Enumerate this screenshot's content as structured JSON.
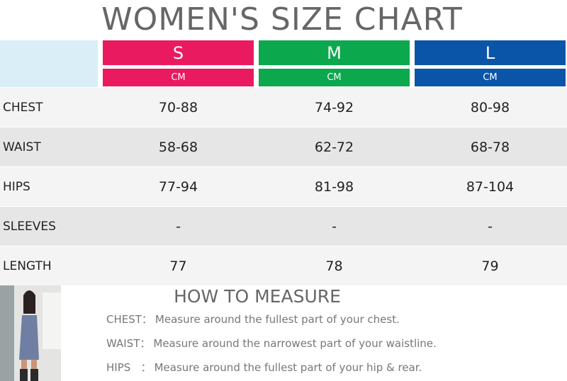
{
  "header": {
    "title": "WOMEN'S SIZE CHART"
  },
  "table": {
    "columns": [
      {
        "size": "S",
        "unit": "CM",
        "color": "#ea1a60"
      },
      {
        "size": "M",
        "unit": "CM",
        "color": "#0ca84e"
      },
      {
        "size": "L",
        "unit": "CM",
        "color": "#0b55a8"
      }
    ],
    "rows": [
      [
        "CHEST",
        "70-88",
        "74-92",
        "80-98"
      ],
      [
        "WAIST",
        "58-68",
        "62-72",
        "68-78"
      ],
      [
        "HIPS",
        "77-94",
        "81-98",
        "87-104"
      ],
      [
        "SLEEVES",
        "-",
        "-",
        "-"
      ],
      [
        "LENGTH",
        "77",
        "78",
        "79"
      ]
    ]
  },
  "how_to_measure": {
    "title": "HOW TO MEASURE",
    "items": [
      {
        "key": "CHEST：",
        "text": "Measure around the fullest part of your chest."
      },
      {
        "key": "WAIST：",
        "text": "Measure around the narrowest part of your waistline."
      },
      {
        "key": "HIPS   ：",
        "text": "Measure around the fullest part of your hip & rear."
      }
    ]
  }
}
